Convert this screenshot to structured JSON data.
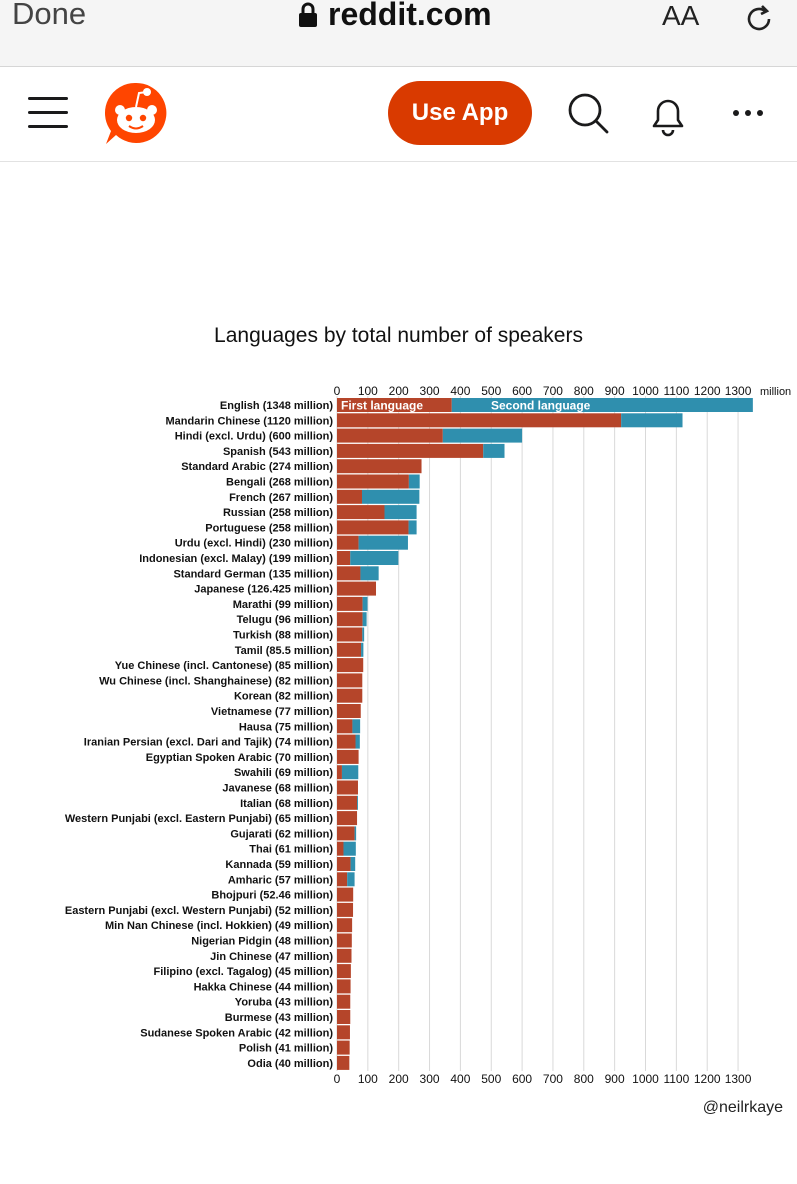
{
  "browser": {
    "done_label": "Done",
    "url": "reddit.com",
    "text_size_label": "AA"
  },
  "reddit_header": {
    "use_app_label": "Use App",
    "brand_color": "#d93a00"
  },
  "chart_data": {
    "type": "bar",
    "orientation": "horizontal",
    "stacked": true,
    "title": "Languages by total number of speakers",
    "unit_label": "million",
    "xlim": [
      0,
      1350
    ],
    "x_ticks": [
      0,
      100,
      200,
      300,
      400,
      500,
      600,
      700,
      800,
      900,
      1000,
      1100,
      1200,
      1300
    ],
    "grid": true,
    "legend": "inside first bar",
    "series": [
      {
        "name": "First language",
        "color": "#b5452a"
      },
      {
        "name": "Second language",
        "color": "#2f8fae"
      }
    ],
    "categories": [
      {
        "label": "English (1348 million)",
        "first": 372,
        "second": 976
      },
      {
        "label": "Mandarin Chinese (1120 million)",
        "first": 921,
        "second": 199
      },
      {
        "label": "Hindi (excl. Urdu) (600 million)",
        "first": 343,
        "second": 257
      },
      {
        "label": "Spanish (543 million)",
        "first": 474,
        "second": 69
      },
      {
        "label": "Standard Arabic (274 million)",
        "first": 274,
        "second": 0
      },
      {
        "label": "Bengali (268 million)",
        "first": 233,
        "second": 35
      },
      {
        "label": "French (267 million)",
        "first": 81,
        "second": 186
      },
      {
        "label": "Russian (258 million)",
        "first": 154,
        "second": 104
      },
      {
        "label": "Portuguese (258 million)",
        "first": 232,
        "second": 26
      },
      {
        "label": "Urdu (excl. Hindi) (230 million)",
        "first": 70,
        "second": 160
      },
      {
        "label": "Indonesian (excl. Malay) (199 million)",
        "first": 43,
        "second": 156
      },
      {
        "label": "Standard German (135 million)",
        "first": 76,
        "second": 59
      },
      {
        "label": "Japanese (126.425 million)",
        "first": 126.425,
        "second": 0
      },
      {
        "label": "Marathi (99 million)",
        "first": 83,
        "second": 16
      },
      {
        "label": "Telugu (96 million)",
        "first": 83,
        "second": 13
      },
      {
        "label": "Turkish (88 million)",
        "first": 82,
        "second": 6
      },
      {
        "label": "Tamil (85.5 million)",
        "first": 78,
        "second": 7.5
      },
      {
        "label": "Yue Chinese (incl. Cantonese) (85 million)",
        "first": 85,
        "second": 0
      },
      {
        "label": "Wu Chinese (incl. Shanghainese) (82 million)",
        "first": 82,
        "second": 0
      },
      {
        "label": "Korean (82 million)",
        "first": 82,
        "second": 0
      },
      {
        "label": "Vietnamese (77 million)",
        "first": 77,
        "second": 0
      },
      {
        "label": "Hausa (75 million)",
        "first": 50,
        "second": 25
      },
      {
        "label": "Iranian Persian (excl. Dari and Tajik) (74 million)",
        "first": 60,
        "second": 14
      },
      {
        "label": "Egyptian Spoken Arabic (70 million)",
        "first": 70,
        "second": 0
      },
      {
        "label": "Swahili (69 million)",
        "first": 16,
        "second": 53
      },
      {
        "label": "Javanese (68 million)",
        "first": 68,
        "second": 0
      },
      {
        "label": "Italian (68 million)",
        "first": 65,
        "second": 3
      },
      {
        "label": "Western Punjabi (excl. Eastern Punjabi) (65 million)",
        "first": 65,
        "second": 0
      },
      {
        "label": "Gujarati (62 million)",
        "first": 57,
        "second": 5
      },
      {
        "label": "Thai (61 million)",
        "first": 21,
        "second": 40
      },
      {
        "label": "Kannada (59 million)",
        "first": 44,
        "second": 15
      },
      {
        "label": "Amharic (57 million)",
        "first": 33,
        "second": 24
      },
      {
        "label": "Bhojpuri (52.46 million)",
        "first": 52.46,
        "second": 0
      },
      {
        "label": "Eastern Punjabi (excl. Western Punjabi) (52 million)",
        "first": 52,
        "second": 0
      },
      {
        "label": "Min Nan Chinese (incl. Hokkien) (49 million)",
        "first": 49,
        "second": 0
      },
      {
        "label": "Nigerian Pidgin (48 million)",
        "first": 48,
        "second": 0
      },
      {
        "label": "Jin Chinese (47 million)",
        "first": 47,
        "second": 0
      },
      {
        "label": "Filipino (excl. Tagalog) (45 million)",
        "first": 45,
        "second": 0
      },
      {
        "label": "Hakka Chinese (44 million)",
        "first": 44,
        "second": 0
      },
      {
        "label": "Yoruba (43 million)",
        "first": 43,
        "second": 0
      },
      {
        "label": "Burmese (43 million)",
        "first": 43,
        "second": 0
      },
      {
        "label": "Sudanese Spoken Arabic (42 million)",
        "first": 42,
        "second": 0
      },
      {
        "label": "Polish (41 million)",
        "first": 41,
        "second": 0
      },
      {
        "label": "Odia (40 million)",
        "first": 40,
        "second": 0
      }
    ],
    "credit": "@neilrkaye"
  }
}
